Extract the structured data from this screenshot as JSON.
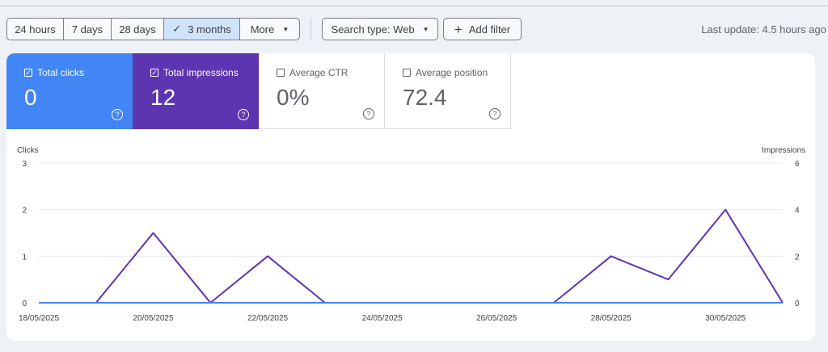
{
  "toolbar": {
    "ranges": [
      "24 hours",
      "7 days",
      "28 days",
      "3 months"
    ],
    "more_label": "More",
    "search_type_label": "Search type: Web",
    "add_filter_label": "Add filter",
    "last_update": "Last update: 4.5 hours ago"
  },
  "metrics": [
    {
      "label": "Total clicks",
      "value": "0",
      "checked": true,
      "color": "#4285f4"
    },
    {
      "label": "Total impressions",
      "value": "12",
      "checked": true,
      "color": "#5e35b1"
    },
    {
      "label": "Average CTR",
      "value": "0%",
      "checked": false
    },
    {
      "label": "Average position",
      "value": "72.4",
      "checked": false
    }
  ],
  "chart_data": {
    "type": "line",
    "left_axis_label": "Clicks",
    "right_axis_label": "Impressions",
    "left_ylim": [
      0,
      3
    ],
    "right_ylim": [
      0,
      6
    ],
    "left_ticks": [
      "0",
      "1",
      "2",
      "3"
    ],
    "right_ticks": [
      "0",
      "2",
      "4",
      "6"
    ],
    "x_tick_labels": [
      "18/05/2025",
      "20/05/2025",
      "22/05/2025",
      "24/05/2025",
      "26/05/2025",
      "28/05/2025",
      "30/05/2025"
    ],
    "x": [
      "18/05/2025",
      "19/05/2025",
      "20/05/2025",
      "21/05/2025",
      "22/05/2025",
      "23/05/2025",
      "24/05/2025",
      "25/05/2025",
      "26/05/2025",
      "27/05/2025",
      "28/05/2025",
      "29/05/2025",
      "30/05/2025",
      "31/05/2025"
    ],
    "series": [
      {
        "name": "Clicks",
        "axis": "left",
        "color": "#4285f4",
        "values": [
          0,
          0,
          0,
          0,
          0,
          0,
          0,
          0,
          0,
          0,
          0,
          0,
          0,
          0
        ]
      },
      {
        "name": "Impressions",
        "axis": "right",
        "color": "#5e35b1",
        "values": [
          0,
          0,
          3,
          0,
          2,
          0,
          0,
          0,
          0,
          0,
          2,
          1,
          4,
          0
        ]
      }
    ],
    "grid": true
  }
}
